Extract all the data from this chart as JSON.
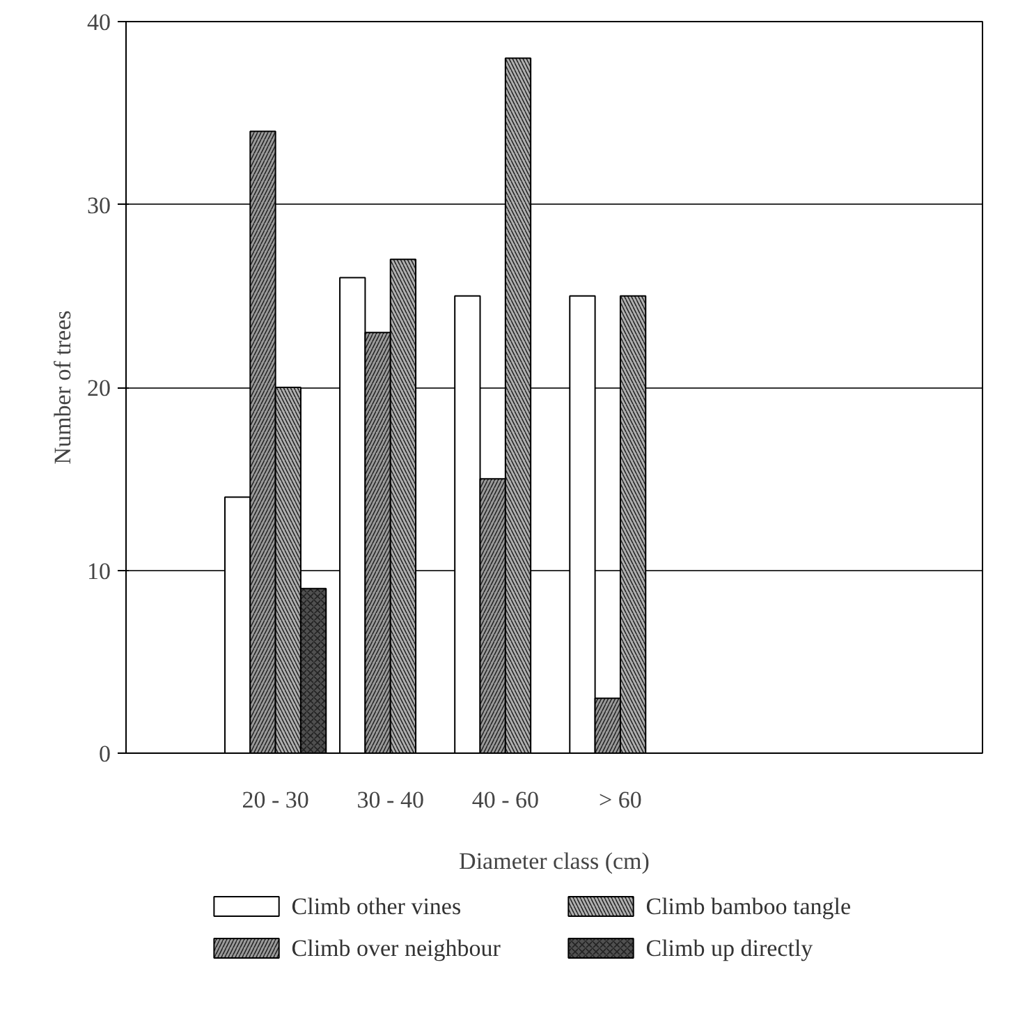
{
  "chart_data": {
    "type": "bar",
    "xlabel": "Diameter class (cm)",
    "ylabel": "Number of trees",
    "categories": [
      "20 - 30",
      "30 - 40",
      "40 - 60",
      "> 60"
    ],
    "series": [
      {
        "name": "Climb other vines",
        "color": "#ffffff",
        "values": [
          14,
          26,
          25,
          25
        ]
      },
      {
        "name": "Climb over neighbour",
        "color": "#9a9a9a",
        "values": [
          34,
          23,
          15,
          3
        ]
      },
      {
        "name": "Climb bamboo tangle",
        "color": "#b0b0b0",
        "values": [
          20,
          27,
          38,
          25
        ]
      },
      {
        "name": "Climb up directly",
        "color": "#505050",
        "values": [
          9,
          null,
          null,
          null
        ]
      }
    ],
    "ylim": [
      0,
      40
    ],
    "yticks": [
      0,
      10,
      20,
      30,
      40
    ],
    "grid": "y",
    "legend": "bottom"
  }
}
